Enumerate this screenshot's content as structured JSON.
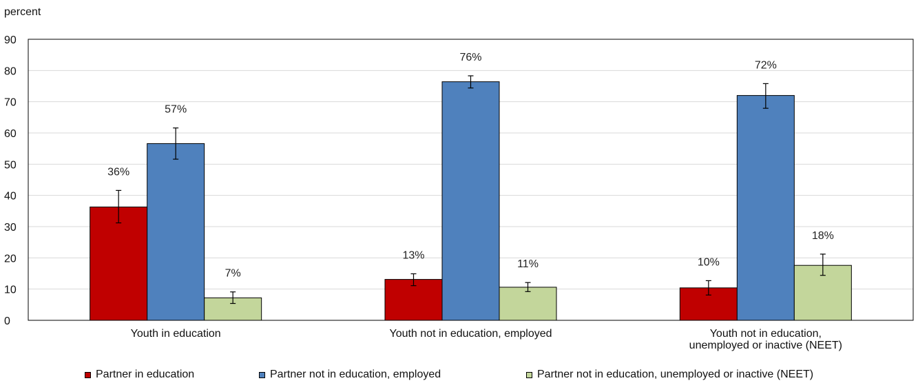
{
  "chart_data": {
    "type": "bar",
    "unit_label": "percent",
    "ylim": [
      0,
      90
    ],
    "yticks": [
      0,
      10,
      20,
      30,
      40,
      50,
      60,
      70,
      80,
      90
    ],
    "grid": true,
    "legend_position": "bottom",
    "categories": [
      [
        "Youth in education"
      ],
      [
        "Youth not in education, employed"
      ],
      [
        "Youth not in education,",
        "unemployed or inactive (NEET)"
      ]
    ],
    "series": [
      {
        "name": "Partner in education",
        "color": "#c00000",
        "values": [
          36.3,
          13.1,
          10.4
        ],
        "error_low": [
          31.2,
          11.1,
          8.1
        ],
        "error_high": [
          41.6,
          14.9,
          12.7
        ],
        "labels": [
          "36%",
          "13%",
          "10%"
        ]
      },
      {
        "name": "Partner not in education, employed",
        "color": "#4f81bd",
        "values": [
          56.6,
          76.4,
          72.0
        ],
        "error_low": [
          51.6,
          74.4,
          67.9
        ],
        "error_high": [
          61.6,
          78.3,
          75.8
        ],
        "labels": [
          "57%",
          "76%",
          "72%"
        ]
      },
      {
        "name": "Partner not in education, unemployed or inactive (NEET)",
        "color": "#c3d69b",
        "values": [
          7.2,
          10.6,
          17.6
        ],
        "error_low": [
          5.4,
          9.2,
          14.4
        ],
        "error_high": [
          9.1,
          12.1,
          21.2
        ],
        "labels": [
          "7%",
          "11%",
          "18%"
        ]
      }
    ]
  }
}
